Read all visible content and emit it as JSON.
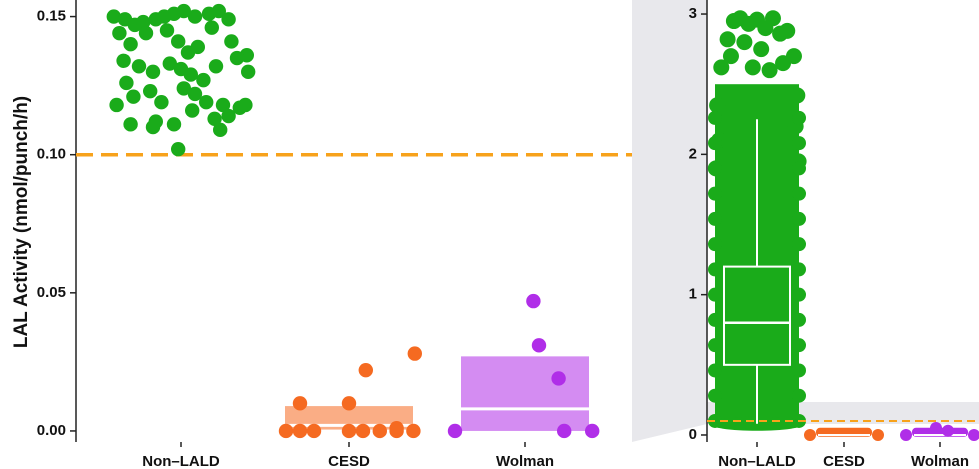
{
  "chart_data": [
    {
      "type": "scatter",
      "title": "",
      "xlabel": "",
      "ylabel": "LAL Activity (nmol/punch/h)",
      "ylim": [
        -0.004,
        0.156
      ],
      "yticks": [
        0.0,
        0.05,
        0.1,
        0.15
      ],
      "ytick_labels": [
        "0.00",
        "0.05",
        "0.10",
        "0.15"
      ],
      "categories": [
        "Non–LALD",
        "CESD",
        "Wolman"
      ],
      "cutoff": 0.1,
      "colors": {
        "Non–LALD": "#1aab1a",
        "CESD": "#f56a21",
        "Wolman": "#b02ee8",
        "cutoff": "#f7a21b"
      },
      "boxes": [
        {
          "category": "CESD",
          "low": 0.0005,
          "median": 0.002,
          "high": 0.009
        },
        {
          "category": "Wolman",
          "low": 0.0,
          "median": 0.008,
          "high": 0.027
        }
      ],
      "series": [
        {
          "category": "Non–LALD",
          "points": [
            [
              0.02,
              0.15
            ],
            [
              0.1,
              0.149
            ],
            [
              0.17,
              0.147
            ],
            [
              0.23,
              0.148
            ],
            [
              0.32,
              0.149
            ],
            [
              0.38,
              0.15
            ],
            [
              0.45,
              0.151
            ],
            [
              0.52,
              0.152
            ],
            [
              0.6,
              0.15
            ],
            [
              0.7,
              0.151
            ],
            [
              0.77,
              0.152
            ],
            [
              0.84,
              0.149
            ],
            [
              0.06,
              0.144
            ],
            [
              0.14,
              0.14
            ],
            [
              0.25,
              0.144
            ],
            [
              0.4,
              0.145
            ],
            [
              0.48,
              0.141
            ],
            [
              0.55,
              0.137
            ],
            [
              0.62,
              0.139
            ],
            [
              0.72,
              0.146
            ],
            [
              0.86,
              0.141
            ],
            [
              0.97,
              0.136
            ],
            [
              0.09,
              0.134
            ],
            [
              0.2,
              0.132
            ],
            [
              0.3,
              0.13
            ],
            [
              0.42,
              0.133
            ],
            [
              0.5,
              0.131
            ],
            [
              0.57,
              0.129
            ],
            [
              0.66,
              0.127
            ],
            [
              0.75,
              0.132
            ],
            [
              0.9,
              0.135
            ],
            [
              0.98,
              0.13
            ],
            [
              0.11,
              0.126
            ],
            [
              0.28,
              0.123
            ],
            [
              0.36,
              0.119
            ],
            [
              0.52,
              0.124
            ],
            [
              0.6,
              0.122
            ],
            [
              0.68,
              0.119
            ],
            [
              0.8,
              0.118
            ],
            [
              0.92,
              0.117
            ],
            [
              0.04,
              0.118
            ],
            [
              0.16,
              0.121
            ],
            [
              0.32,
              0.112
            ],
            [
              0.45,
              0.111
            ],
            [
              0.58,
              0.116
            ],
            [
              0.74,
              0.113
            ],
            [
              0.84,
              0.114
            ],
            [
              0.96,
              0.118
            ],
            [
              0.14,
              0.111
            ],
            [
              0.3,
              0.11
            ],
            [
              0.78,
              0.109
            ],
            [
              0.48,
              0.102
            ]
          ]
        },
        {
          "category": "CESD",
          "points": [
            [
              0.05,
              0.0
            ],
            [
              0.15,
              0.0
            ],
            [
              0.25,
              0.0
            ],
            [
              0.5,
              0.0
            ],
            [
              0.6,
              0.0
            ],
            [
              0.72,
              0.0
            ],
            [
              0.84,
              0.0
            ],
            [
              0.96,
              0.0
            ],
            [
              0.15,
              0.01
            ],
            [
              0.5,
              0.01
            ],
            [
              0.84,
              0.001
            ],
            [
              0.62,
              0.022
            ],
            [
              0.97,
              0.028
            ]
          ]
        },
        {
          "category": "Wolman",
          "points": [
            [
              0.0,
              0.0
            ],
            [
              0.78,
              0.0
            ],
            [
              0.98,
              0.0
            ],
            [
              0.74,
              0.019
            ],
            [
              0.6,
              0.031
            ],
            [
              0.56,
              0.047
            ]
          ]
        }
      ]
    },
    {
      "type": "box",
      "title": "",
      "xlabel": "",
      "ylabel": "",
      "ylim": [
        -0.05,
        3.1
      ],
      "yticks": [
        0,
        1,
        2,
        3
      ],
      "ytick_labels": [
        "0",
        "1",
        "2",
        "3"
      ],
      "categories": [
        "Non–LALD",
        "CESD",
        "Wolman"
      ],
      "cutoff": 0.1,
      "boxes": [
        {
          "category": "Non–LALD",
          "low": 0.08,
          "q1": 0.5,
          "median": 0.8,
          "q3": 1.2,
          "high": 2.25,
          "max": 2.98
        },
        {
          "category": "CESD",
          "low": 0.0,
          "q1": 0.0,
          "median": 0.0,
          "q3": 0.01,
          "high": 0.01
        },
        {
          "category": "Wolman",
          "low": 0.0,
          "q1": 0.0,
          "median": 0.01,
          "q3": 0.03,
          "high": 0.05
        }
      ]
    }
  ]
}
